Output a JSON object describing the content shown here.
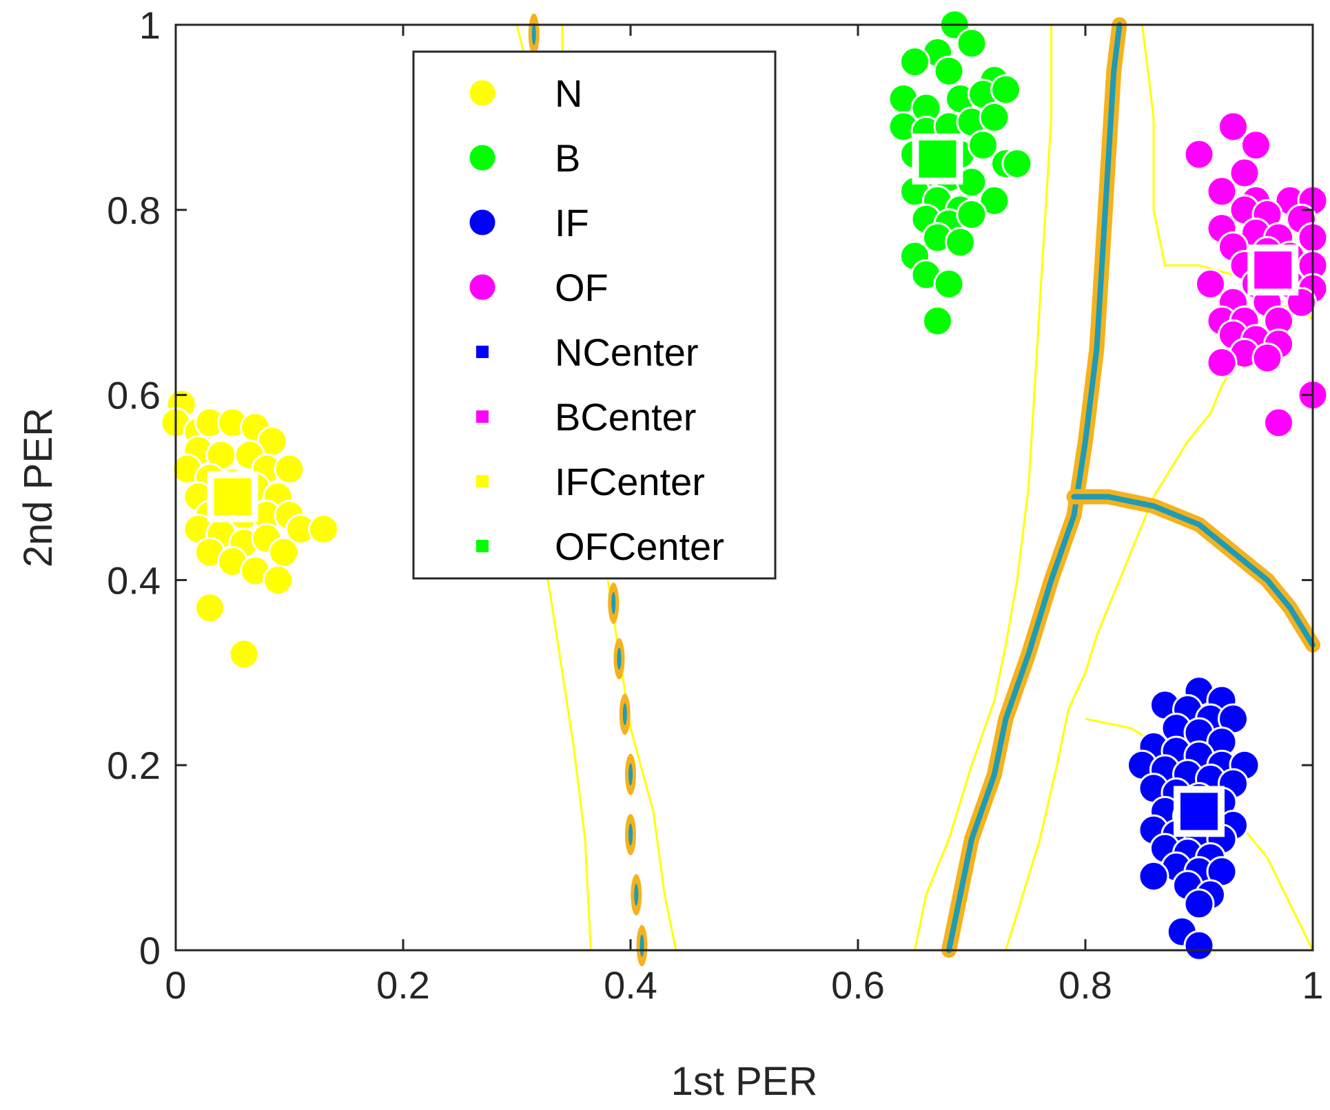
{
  "chart_data": {
    "type": "scatter",
    "title": "",
    "xlabel": "1st PER",
    "ylabel": "2nd PER",
    "xlim": [
      0,
      1
    ],
    "ylim": [
      0,
      1
    ],
    "xticks": [
      "0",
      "0.2",
      "0.4",
      "0.6",
      "0.8",
      "1"
    ],
    "yticks": [
      "0",
      "0.2",
      "0.4",
      "0.6",
      "0.8",
      "1"
    ],
    "grid": false,
    "legend_position": "top-center",
    "series": [
      {
        "name": "N",
        "marker": "circle",
        "color": "#ffff00",
        "points": [
          [
            0.005,
            0.59
          ],
          [
            0.0,
            0.57
          ],
          [
            0.02,
            0.56
          ],
          [
            0.03,
            0.57
          ],
          [
            0.05,
            0.57
          ],
          [
            0.07,
            0.565
          ],
          [
            0.085,
            0.55
          ],
          [
            0.02,
            0.54
          ],
          [
            0.04,
            0.535
          ],
          [
            0.065,
            0.535
          ],
          [
            0.01,
            0.52
          ],
          [
            0.03,
            0.51
          ],
          [
            0.05,
            0.505
          ],
          [
            0.08,
            0.52
          ],
          [
            0.1,
            0.52
          ],
          [
            0.02,
            0.49
          ],
          [
            0.045,
            0.485
          ],
          [
            0.07,
            0.5
          ],
          [
            0.09,
            0.49
          ],
          [
            0.03,
            0.47
          ],
          [
            0.06,
            0.47
          ],
          [
            0.08,
            0.47
          ],
          [
            0.1,
            0.47
          ],
          [
            0.11,
            0.455
          ],
          [
            0.02,
            0.455
          ],
          [
            0.04,
            0.45
          ],
          [
            0.06,
            0.44
          ],
          [
            0.08,
            0.445
          ],
          [
            0.095,
            0.43
          ],
          [
            0.03,
            0.43
          ],
          [
            0.05,
            0.42
          ],
          [
            0.07,
            0.41
          ],
          [
            0.09,
            0.4
          ],
          [
            0.13,
            0.455
          ],
          [
            0.03,
            0.37
          ],
          [
            0.06,
            0.32
          ]
        ]
      },
      {
        "name": "B",
        "marker": "circle",
        "color": "#00ff00",
        "points": [
          [
            0.685,
            1.0
          ],
          [
            0.67,
            0.97
          ],
          [
            0.7,
            0.98
          ],
          [
            0.65,
            0.96
          ],
          [
            0.68,
            0.95
          ],
          [
            0.72,
            0.94
          ],
          [
            0.64,
            0.92
          ],
          [
            0.66,
            0.91
          ],
          [
            0.69,
            0.92
          ],
          [
            0.71,
            0.925
          ],
          [
            0.73,
            0.93
          ],
          [
            0.64,
            0.89
          ],
          [
            0.66,
            0.885
          ],
          [
            0.68,
            0.89
          ],
          [
            0.7,
            0.895
          ],
          [
            0.72,
            0.9
          ],
          [
            0.65,
            0.86
          ],
          [
            0.67,
            0.86
          ],
          [
            0.69,
            0.86
          ],
          [
            0.71,
            0.87
          ],
          [
            0.73,
            0.85
          ],
          [
            0.66,
            0.84
          ],
          [
            0.68,
            0.835
          ],
          [
            0.7,
            0.83
          ],
          [
            0.74,
            0.85
          ],
          [
            0.65,
            0.82
          ],
          [
            0.67,
            0.81
          ],
          [
            0.69,
            0.8
          ],
          [
            0.72,
            0.81
          ],
          [
            0.66,
            0.79
          ],
          [
            0.68,
            0.785
          ],
          [
            0.7,
            0.795
          ],
          [
            0.67,
            0.77
          ],
          [
            0.69,
            0.765
          ],
          [
            0.65,
            0.75
          ],
          [
            0.66,
            0.73
          ],
          [
            0.68,
            0.72
          ],
          [
            0.67,
            0.68
          ]
        ]
      },
      {
        "name": "IF",
        "marker": "circle",
        "color": "#0000ff",
        "points": [
          [
            0.9,
            0.28
          ],
          [
            0.92,
            0.27
          ],
          [
            0.87,
            0.265
          ],
          [
            0.89,
            0.26
          ],
          [
            0.91,
            0.25
          ],
          [
            0.93,
            0.25
          ],
          [
            0.88,
            0.24
          ],
          [
            0.9,
            0.235
          ],
          [
            0.92,
            0.225
          ],
          [
            0.86,
            0.22
          ],
          [
            0.88,
            0.215
          ],
          [
            0.9,
            0.21
          ],
          [
            0.92,
            0.2
          ],
          [
            0.94,
            0.2
          ],
          [
            0.85,
            0.2
          ],
          [
            0.87,
            0.195
          ],
          [
            0.89,
            0.19
          ],
          [
            0.91,
            0.185
          ],
          [
            0.93,
            0.18
          ],
          [
            0.86,
            0.175
          ],
          [
            0.88,
            0.17
          ],
          [
            0.9,
            0.165
          ],
          [
            0.92,
            0.16
          ],
          [
            0.87,
            0.15
          ],
          [
            0.89,
            0.145
          ],
          [
            0.91,
            0.14
          ],
          [
            0.93,
            0.135
          ],
          [
            0.86,
            0.13
          ],
          [
            0.88,
            0.125
          ],
          [
            0.9,
            0.12
          ],
          [
            0.92,
            0.12
          ],
          [
            0.87,
            0.11
          ],
          [
            0.89,
            0.105
          ],
          [
            0.91,
            0.1
          ],
          [
            0.88,
            0.09
          ],
          [
            0.9,
            0.085
          ],
          [
            0.92,
            0.085
          ],
          [
            0.86,
            0.08
          ],
          [
            0.89,
            0.07
          ],
          [
            0.91,
            0.06
          ],
          [
            0.9,
            0.05
          ],
          [
            0.885,
            0.02
          ],
          [
            0.9,
            0.005
          ]
        ]
      },
      {
        "name": "OF",
        "marker": "circle",
        "color": "#ff00ff",
        "points": [
          [
            0.93,
            0.89
          ],
          [
            0.95,
            0.87
          ],
          [
            0.9,
            0.86
          ],
          [
            0.94,
            0.84
          ],
          [
            0.92,
            0.82
          ],
          [
            0.95,
            0.81
          ],
          [
            0.98,
            0.81
          ],
          [
            1.0,
            0.81
          ],
          [
            0.94,
            0.8
          ],
          [
            0.96,
            0.795
          ],
          [
            0.99,
            0.79
          ],
          [
            0.92,
            0.78
          ],
          [
            0.95,
            0.775
          ],
          [
            0.97,
            0.77
          ],
          [
            1.0,
            0.77
          ],
          [
            0.93,
            0.76
          ],
          [
            0.96,
            0.755
          ],
          [
            0.98,
            0.75
          ],
          [
            0.94,
            0.74
          ],
          [
            0.97,
            0.735
          ],
          [
            1.0,
            0.74
          ],
          [
            0.91,
            0.72
          ],
          [
            0.95,
            0.72
          ],
          [
            0.98,
            0.72
          ],
          [
            1.0,
            0.715
          ],
          [
            0.93,
            0.7
          ],
          [
            0.96,
            0.7
          ],
          [
            0.99,
            0.7
          ],
          [
            0.92,
            0.68
          ],
          [
            0.94,
            0.68
          ],
          [
            0.97,
            0.68
          ],
          [
            0.93,
            0.665
          ],
          [
            0.95,
            0.66
          ],
          [
            0.97,
            0.655
          ],
          [
            0.94,
            0.645
          ],
          [
            0.96,
            0.64
          ],
          [
            0.92,
            0.635
          ],
          [
            1.0,
            0.6
          ],
          [
            0.97,
            0.57
          ]
        ]
      }
    ],
    "centers": [
      {
        "name": "NCenter",
        "marker": "square",
        "color": "#0000ff",
        "x": 0.9,
        "y": 0.15
      },
      {
        "name": "BCenter",
        "marker": "square",
        "color": "#ff00ff",
        "x": 0.965,
        "y": 0.735
      },
      {
        "name": "IFCenter",
        "marker": "square",
        "color": "#ffff00",
        "x": 0.05,
        "y": 0.49
      },
      {
        "name": "OFCenter",
        "marker": "square",
        "color": "#00ff00",
        "x": 0.67,
        "y": 0.855
      }
    ],
    "contours": {
      "outer_color": "#ffff00",
      "band_colors": [
        "#f5b21c",
        "#1f9bb5"
      ],
      "outer_lines": [
        [
          [
            0.73,
            0.0
          ],
          [
            0.745,
            0.06
          ],
          [
            0.76,
            0.12
          ],
          [
            0.775,
            0.2
          ],
          [
            0.785,
            0.26
          ],
          [
            0.8,
            0.3
          ],
          [
            0.81,
            0.34
          ],
          [
            0.82,
            0.37
          ],
          [
            0.83,
            0.4
          ],
          [
            0.84,
            0.43
          ],
          [
            0.85,
            0.46
          ],
          [
            0.86,
            0.49
          ],
          [
            0.87,
            0.51
          ],
          [
            0.88,
            0.53
          ],
          [
            0.89,
            0.55
          ],
          [
            0.91,
            0.58
          ],
          [
            0.92,
            0.61
          ],
          [
            0.94,
            0.65
          ],
          [
            0.96,
            0.68
          ],
          [
            0.98,
            0.7
          ],
          [
            1.0,
            0.72
          ]
        ],
        [
          [
            0.65,
            0.0
          ],
          [
            0.66,
            0.06
          ],
          [
            0.68,
            0.12
          ],
          [
            0.7,
            0.2
          ],
          [
            0.72,
            0.27
          ],
          [
            0.73,
            0.33
          ],
          [
            0.74,
            0.4
          ],
          [
            0.75,
            0.5
          ],
          [
            0.755,
            0.6
          ],
          [
            0.76,
            0.7
          ],
          [
            0.765,
            0.8
          ],
          [
            0.77,
            0.9
          ],
          [
            0.77,
            1.0
          ]
        ],
        [
          [
            0.8,
            0.25
          ],
          [
            0.84,
            0.24
          ],
          [
            0.88,
            0.21
          ],
          [
            0.92,
            0.16
          ],
          [
            0.96,
            0.1
          ],
          [
            0.98,
            0.05
          ],
          [
            1.0,
            0.0
          ]
        ],
        [
          [
            0.85,
            1.0
          ],
          [
            0.86,
            0.9
          ],
          [
            0.86,
            0.8
          ],
          [
            0.87,
            0.74
          ],
          [
            0.9,
            0.74
          ],
          [
            0.93,
            0.73
          ],
          [
            0.96,
            0.72
          ],
          [
            0.99,
            0.7
          ],
          [
            1.0,
            0.68
          ]
        ],
        [
          [
            0.32,
            0.45
          ],
          [
            0.33,
            0.38
          ],
          [
            0.34,
            0.3
          ],
          [
            0.35,
            0.22
          ],
          [
            0.36,
            0.12
          ],
          [
            0.365,
            0.0
          ]
        ],
        [
          [
            0.38,
            0.4
          ],
          [
            0.39,
            0.32
          ],
          [
            0.4,
            0.24
          ],
          [
            0.42,
            0.15
          ],
          [
            0.43,
            0.06
          ],
          [
            0.44,
            0.0
          ]
        ],
        [
          [
            0.3,
            1.0
          ],
          [
            0.31,
            0.95
          ],
          [
            0.32,
            0.92
          ],
          [
            0.33,
            0.92
          ],
          [
            0.34,
            0.95
          ],
          [
            0.34,
            1.0
          ]
        ]
      ],
      "bands": [
        [
          [
            0.68,
            0.0
          ],
          [
            0.69,
            0.06
          ],
          [
            0.7,
            0.12
          ],
          [
            0.72,
            0.19
          ],
          [
            0.73,
            0.25
          ],
          [
            0.75,
            0.32
          ],
          [
            0.77,
            0.4
          ],
          [
            0.79,
            0.47
          ],
          [
            0.8,
            0.55
          ],
          [
            0.81,
            0.65
          ],
          [
            0.815,
            0.75
          ],
          [
            0.82,
            0.85
          ],
          [
            0.825,
            0.95
          ],
          [
            0.83,
            1.0
          ]
        ],
        [
          [
            0.79,
            0.49
          ],
          [
            0.82,
            0.49
          ],
          [
            0.86,
            0.48
          ],
          [
            0.9,
            0.46
          ],
          [
            0.93,
            0.43
          ],
          [
            0.96,
            0.4
          ],
          [
            0.98,
            0.37
          ],
          [
            1.0,
            0.33
          ]
        ]
      ],
      "ellipses": [
        [
          0.385,
          0.375
        ],
        [
          0.39,
          0.315
        ],
        [
          0.395,
          0.255
        ],
        [
          0.4,
          0.19
        ],
        [
          0.4,
          0.125
        ],
        [
          0.405,
          0.06
        ],
        [
          0.41,
          0.005
        ],
        [
          0.315,
          0.99
        ]
      ]
    },
    "legend": [
      "N",
      "B",
      "IF",
      "OF",
      "NCenter",
      "BCenter",
      "IFCenter",
      "OFCenter"
    ]
  }
}
